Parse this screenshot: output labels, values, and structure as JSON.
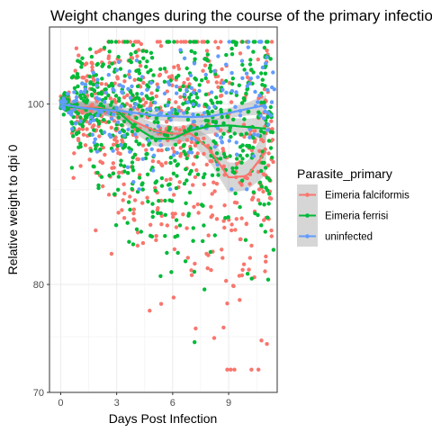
{
  "chart_data": {
    "type": "scatter",
    "title": "Weight changes during the course of the primary infection",
    "xlabel": "Days Post Infection",
    "ylabel": "Relative weight to dpi 0",
    "xlim": [
      -0.6,
      11.6
    ],
    "ylim": [
      70,
      110
    ],
    "x_ticks": [
      0,
      3,
      6,
      9
    ],
    "y_ticks": [
      70,
      80,
      100
    ],
    "y_scale": "log",
    "grid": true,
    "legend": {
      "title": "Parasite_primary",
      "position": "right",
      "entries": [
        "Eimeria falciformis",
        "Eimeria ferrisi",
        "uninfected"
      ]
    },
    "series": [
      {
        "name": "Eimeria falciformis",
        "color": "#F8766D",
        "smooth": {
          "x": [
            0,
            1,
            2,
            3,
            4,
            5,
            6,
            7,
            8,
            9,
            10,
            11
          ],
          "y": [
            100,
            99.6,
            99.6,
            99.0,
            97.8,
            96.8,
            96.4,
            96.4,
            94.5,
            91.3,
            91.5,
            94.3
          ],
          "lower": [
            99.4,
            98.8,
            98.8,
            98.2,
            97.0,
            95.9,
            95.5,
            95.4,
            93.0,
            89.6,
            89.9,
            91.6
          ],
          "upper": [
            100.6,
            100.4,
            100.4,
            99.8,
            98.6,
            97.7,
            97.3,
            97.4,
            96.0,
            93.0,
            93.1,
            97.0
          ]
        }
      },
      {
        "name": "Eimeria ferrisi",
        "color": "#00BA38",
        "smooth": {
          "x": [
            0,
            1,
            2,
            3,
            4,
            5,
            6,
            7,
            8,
            9,
            10,
            11
          ],
          "y": [
            100,
            99.5,
            99.4,
            99.2,
            97.2,
            95.8,
            95.8,
            96.8,
            97.3,
            97.4,
            97.2,
            97.0
          ],
          "lower": [
            99.4,
            98.7,
            98.6,
            98.4,
            96.4,
            94.9,
            94.9,
            95.9,
            96.4,
            96.5,
            96.2,
            95.6
          ],
          "upper": [
            100.6,
            100.3,
            100.2,
            100.0,
            98.0,
            96.7,
            96.7,
            97.7,
            98.2,
            98.3,
            98.2,
            98.4
          ]
        }
      },
      {
        "name": "uninfected",
        "color": "#619CFF",
        "smooth": {
          "x": [
            0,
            1,
            2,
            3,
            4,
            5,
            6,
            7,
            8,
            9,
            10,
            11
          ],
          "y": [
            100,
            99.6,
            99.3,
            99.2,
            98.9,
            98.6,
            98.5,
            98.4,
            98.5,
            98.9,
            99.4,
            99.9
          ],
          "lower": [
            99.5,
            99.0,
            98.8,
            98.7,
            98.4,
            98.0,
            97.9,
            97.8,
            97.9,
            98.3,
            98.6,
            98.7
          ],
          "upper": [
            100.5,
            100.2,
            99.8,
            99.7,
            99.4,
            99.2,
            99.1,
            99.0,
            99.1,
            99.5,
            100.2,
            101.1
          ]
        }
      }
    ],
    "points_summary": {
      "note_x_range": [
        0,
        11
      ],
      "approx_point_counts": {
        "Eimeria falciformis": 600,
        "Eimeria ferrisi": 700,
        "uninfected": 220
      },
      "y_spread": {
        "Eimeria falciformis": {
          "min": 72,
          "max": 108
        },
        "Eimeria ferrisi": {
          "min": 74,
          "max": 108
        },
        "uninfected": {
          "min": 90,
          "max": 108
        }
      }
    }
  }
}
